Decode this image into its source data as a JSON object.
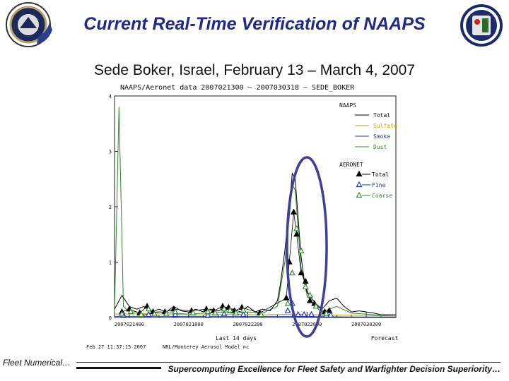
{
  "slide": {
    "title": "Current Real-Time Verification of NAAPS",
    "subtitle": "Sede Boker, Israel, February 13 – March 4, 2007",
    "footer_left": "Fleet Numerical…",
    "footer_right": "Supercomputing Excellence for Fleet Safety and Warfighter Decision Superiority…"
  },
  "chart_data": {
    "type": "line",
    "title": "NAAPS/Aeronet data  2007021300 – 2007030318 – SEDE_BOKER",
    "xlabel": "Last 14 days",
    "x_forecast_label": "Forecast",
    "xtick_labels": [
      "2007021400",
      "2007021800",
      "2007022200",
      "2007022600",
      "2007030200"
    ],
    "xtick_days": [
      1,
      5,
      9,
      13,
      17
    ],
    "xlim": [
      0,
      19
    ],
    "ylim": [
      0,
      4
    ],
    "yticks": [
      0,
      1,
      2,
      3,
      4
    ],
    "grid": false,
    "legend_position": "top-right",
    "naaps_legend_title": "NAAPS",
    "aeronet_legend_title": "AERONET",
    "timestamp": "Feb 27 11:37:15 2007",
    "credit": "NRL/Monterey Aerosol Model nc",
    "colors": {
      "total": "#000000",
      "sulfate": "#c8a400",
      "smoke": "#1e3ca8",
      "dust": "#2a8a2a",
      "fine": "#1a32d2",
      "coarse": "#2f8f2f",
      "highlight": "#3d3f9a"
    },
    "naaps_series": [
      {
        "name": "Total",
        "color": "#000000",
        "x": [
          0,
          0.5,
          1,
          1.5,
          2,
          2.5,
          3,
          3.5,
          4,
          4.5,
          5,
          5.5,
          6,
          6.5,
          7,
          7.5,
          8,
          8.5,
          9,
          9.5,
          10,
          10.5,
          11,
          11.2,
          11.5,
          11.8,
          12,
          12.2,
          12.4,
          12.6,
          12.8,
          13,
          13.3,
          13.6,
          14,
          14.5,
          15,
          15.5,
          16,
          16.5,
          17,
          17.5,
          18,
          18.5,
          19
        ],
        "y": [
          0.15,
          0.4,
          0.2,
          0.15,
          0.2,
          0.1,
          0.15,
          0.1,
          0.2,
          0.12,
          0.1,
          0.15,
          0.1,
          0.15,
          0.12,
          0.18,
          0.15,
          0.1,
          0.2,
          0.1,
          0.15,
          0.12,
          0.3,
          0.6,
          1.2,
          2.0,
          2.6,
          2.5,
          1.8,
          1.1,
          0.7,
          0.45,
          0.35,
          0.25,
          0.15,
          0.3,
          0.35,
          0.2,
          0.1,
          0.12,
          0.1,
          0.08,
          0.05,
          0.05,
          0.05
        ]
      },
      {
        "name": "Sulfate",
        "color": "#c8a400",
        "x": [
          0,
          2,
          4,
          6,
          8,
          10,
          12,
          14,
          16,
          18,
          19
        ],
        "y": [
          0.06,
          0.07,
          0.06,
          0.05,
          0.06,
          0.05,
          0.06,
          0.05,
          0.04,
          0.03,
          0.03
        ]
      },
      {
        "name": "Smoke",
        "color": "#1e3ca8",
        "x": [
          0,
          4,
          8,
          12,
          16,
          19
        ],
        "y": [
          0.02,
          0.02,
          0.02,
          0.02,
          0.01,
          0.01
        ]
      },
      {
        "name": "Dust",
        "color": "#2a8a2a",
        "x": [
          0,
          0.3,
          0.6,
          1,
          1.5,
          2,
          3,
          4,
          5,
          6,
          7,
          8,
          9,
          10,
          11,
          11.5,
          11.8,
          12,
          12.2,
          12.4,
          12.6,
          13,
          13.5,
          14,
          15,
          16,
          17,
          18,
          19
        ],
        "y": [
          0.1,
          3.8,
          0.2,
          0.1,
          0.1,
          0.05,
          0.1,
          0.08,
          0.06,
          0.08,
          0.1,
          0.08,
          0.1,
          0.08,
          0.2,
          1.0,
          1.8,
          2.4,
          2.3,
          1.6,
          0.9,
          0.4,
          0.2,
          0.1,
          0.2,
          0.08,
          0.06,
          0.04,
          0.03
        ]
      }
    ],
    "aeronet_series": [
      {
        "name": "Total",
        "color": "#000000",
        "x": [
          0.5,
          1,
          1.7,
          2.2,
          2.6,
          3.4,
          4.0,
          5.2,
          6.2,
          6.7,
          7.3,
          7.7,
          8.1,
          8.6,
          9.8,
          11.6,
          11.8,
          12.1,
          12.3,
          12.6,
          12.9,
          13.2,
          13.5,
          14.2,
          14.5
        ],
        "y": [
          0.1,
          0.15,
          0.08,
          0.2,
          0.1,
          0.1,
          0.15,
          0.12,
          0.15,
          0.12,
          0.2,
          0.18,
          0.12,
          0.18,
          0.08,
          0.35,
          1.0,
          1.9,
          1.5,
          0.8,
          0.65,
          0.3,
          0.25,
          0.1,
          0.12
        ]
      },
      {
        "name": "Fine",
        "color": "#1a32d2",
        "x": [
          0.6,
          2.3,
          4.1,
          6.3,
          7.4,
          8.7,
          11.7,
          12.0,
          12.4,
          12.8,
          13.3,
          14.3,
          14.6
        ],
        "y": [
          0.04,
          0.05,
          0.05,
          0.04,
          0.06,
          0.05,
          0.12,
          0.25,
          0.05,
          0.05,
          0.05,
          0.04,
          0.04
        ]
      },
      {
        "name": "Coarse",
        "color": "#2f8f2f",
        "x": [
          0.5,
          1.1,
          1.8,
          2.3,
          2.7,
          3.5,
          4.1,
          5.3,
          6.3,
          6.8,
          7.4,
          7.8,
          8.2,
          8.7,
          9.9,
          11.7,
          12.0,
          12.3,
          12.6,
          12.9,
          13.2,
          13.6,
          14.3
        ],
        "y": [
          0.06,
          0.1,
          0.05,
          0.15,
          0.06,
          0.06,
          0.1,
          0.08,
          0.1,
          0.08,
          0.15,
          0.13,
          0.08,
          0.13,
          0.05,
          0.25,
          0.8,
          1.6,
          1.2,
          0.55,
          0.4,
          0.2,
          0.07
        ]
      }
    ]
  }
}
